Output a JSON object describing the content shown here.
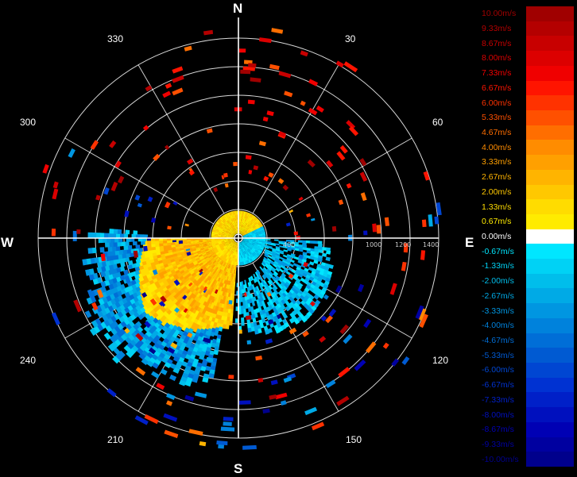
{
  "display": {
    "cardinals": {
      "north": "N",
      "south": "S",
      "east": "E",
      "west": "W"
    },
    "azimuth_labels": [
      "30",
      "60",
      "120",
      "150",
      "210",
      "240",
      "300",
      "330"
    ],
    "range_labels": [
      "400",
      "1000",
      "1200",
      "1400"
    ]
  },
  "legend": {
    "entries": [
      {
        "label": "10.00m/s",
        "color": "#a00000"
      },
      {
        "label": "9.33m/s",
        "color": "#b40000"
      },
      {
        "label": "8.67m/s",
        "color": "#c80000"
      },
      {
        "label": "8.00m/s",
        "color": "#dc0000"
      },
      {
        "label": "7.33m/s",
        "color": "#f00000"
      },
      {
        "label": "6.67m/s",
        "color": "#ff1400"
      },
      {
        "label": "6.00m/s",
        "color": "#ff3200"
      },
      {
        "label": "5.33m/s",
        "color": "#ff5000"
      },
      {
        "label": "4.67m/s",
        "color": "#ff6e00"
      },
      {
        "label": "4.00m/s",
        "color": "#ff8c00"
      },
      {
        "label": "3.33m/s",
        "color": "#ffa000"
      },
      {
        "label": "2.67m/s",
        "color": "#ffb400"
      },
      {
        "label": "2.00m/s",
        "color": "#ffc800"
      },
      {
        "label": "1.33m/s",
        "color": "#ffdc00"
      },
      {
        "label": "0.67m/s",
        "color": "#ffeb00"
      },
      {
        "label": "0.00m/s",
        "color": "#ffffff"
      },
      {
        "label": "-0.67m/s",
        "color": "#00e6ff"
      },
      {
        "label": "-1.33m/s",
        "color": "#00d2f5"
      },
      {
        "label": "-2.00m/s",
        "color": "#00beeb"
      },
      {
        "label": "-2.67m/s",
        "color": "#00aae6"
      },
      {
        "label": "-3.33m/s",
        "color": "#0096e1"
      },
      {
        "label": "-4.00m/s",
        "color": "#0082dc"
      },
      {
        "label": "-4.67m/s",
        "color": "#006ed7"
      },
      {
        "label": "-5.33m/s",
        "color": "#005ad2"
      },
      {
        "label": "-6.00m/s",
        "color": "#0046d2"
      },
      {
        "label": "-6.67m/s",
        "color": "#0032d2"
      },
      {
        "label": "-7.33m/s",
        "color": "#0020c8"
      },
      {
        "label": "-8.00m/s",
        "color": "#0010be"
      },
      {
        "label": "-8.67m/s",
        "color": "#0000b4"
      },
      {
        "label": "-9.33m/s",
        "color": "#0000a0"
      },
      {
        "label": "-10.00m/s",
        "color": "#00008c"
      }
    ]
  }
}
